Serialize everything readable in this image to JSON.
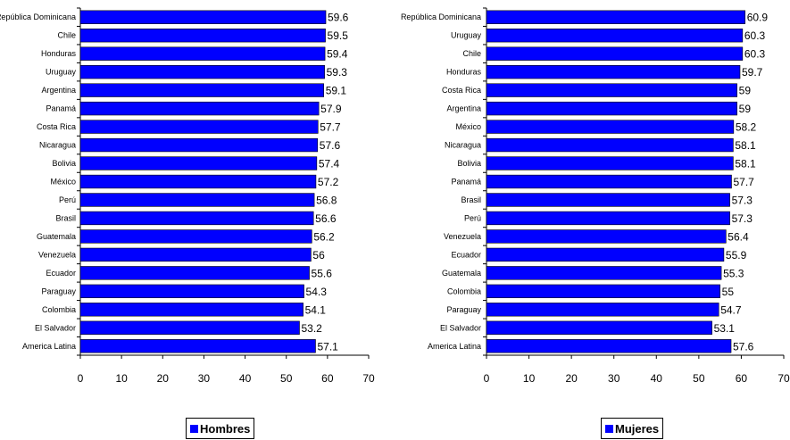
{
  "chart_data": [
    {
      "type": "bar",
      "orientation": "horizontal",
      "categories": [
        "República Dominicana",
        "Chile",
        "Honduras",
        "Uruguay",
        "Argentina",
        "Panamá",
        "Costa Rica",
        "Nicaragua",
        "Bolivia",
        "México",
        "Perú",
        "Brasil",
        "Guatemala",
        "Venezuela",
        "Ecuador",
        "Paraguay",
        "Colombia",
        "El Salvador",
        "America Latina"
      ],
      "series": [
        {
          "name": "Hombres",
          "values": [
            59.6,
            59.5,
            59.4,
            59.3,
            59.1,
            57.9,
            57.7,
            57.6,
            57.4,
            57.2,
            56.8,
            56.6,
            56.2,
            56,
            55.6,
            54.3,
            54.1,
            53.2,
            57.1
          ],
          "color": "#0000ff"
        }
      ],
      "xlim": [
        0,
        70
      ],
      "xticks": [
        0,
        10,
        20,
        30,
        40,
        50,
        60,
        70
      ],
      "legend": "bottom-center",
      "grid": false
    },
    {
      "type": "bar",
      "orientation": "horizontal",
      "categories": [
        "República Dominicana",
        "Uruguay",
        "Chile",
        "Honduras",
        "Costa Rica",
        "Argentina",
        "México",
        "Nicaragua",
        "Bolivia",
        "Panamá",
        "Brasil",
        "Perú",
        "Venezuela",
        "Ecuador",
        "Guatemala",
        "Colombia",
        "Paraguay",
        "El Salvador",
        "America Latina"
      ],
      "series": [
        {
          "name": "Mujeres",
          "values": [
            60.9,
            60.3,
            60.3,
            59.7,
            59,
            59,
            58.2,
            58.1,
            58.1,
            57.7,
            57.3,
            57.3,
            56.4,
            55.9,
            55.3,
            55,
            54.7,
            53.1,
            57.6
          ],
          "color": "#0000ff"
        }
      ],
      "xlim": [
        0,
        70
      ],
      "xticks": [
        0,
        10,
        20,
        30,
        40,
        50,
        60,
        70
      ],
      "legend": "bottom-center",
      "grid": false
    }
  ]
}
